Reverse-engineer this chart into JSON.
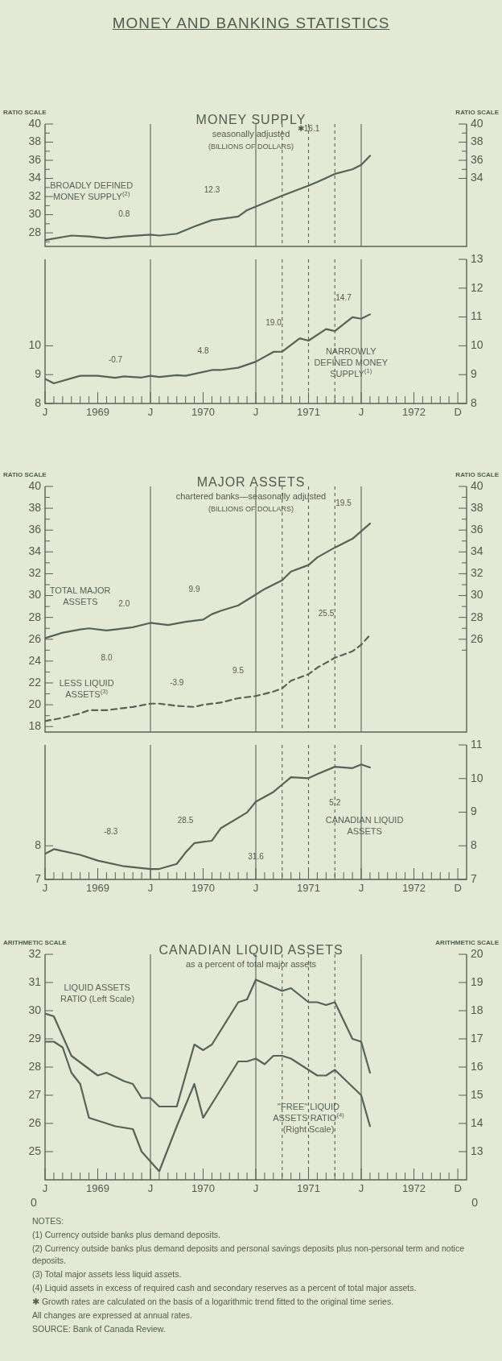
{
  "chart_data": [
    {
      "type": "other",
      "title": "MONEY AND BANKING STATISTICS"
    },
    {
      "type": "line",
      "title": "MONEY SUPPLY",
      "subtitle": "seasonally adjusted",
      "ylabel": "RATIO SCALE",
      "y2label": "RATIO SCALE",
      "legend": false,
      "marker": "none",
      "tick_labels": "y",
      "xlim": [
        "1969-01",
        "1973-01"
      ],
      "ylim": [
        26.5,
        40
      ],
      "yticks": [
        {
          "value": 27,
          "label": null
        },
        28,
        {
          "value": 29,
          "label": null
        },
        30,
        {
          "value": 31,
          "label": null
        },
        32,
        {
          "value": 33,
          "label": null
        },
        34,
        {
          "value": 35,
          "label": null
        },
        36,
        {
          "value": 37,
          "label": null
        },
        38,
        {
          "value": 39,
          "label": null
        },
        40
      ],
      "y2lim": [
        26.5,
        40
      ],
      "y2ticks": [
        34,
        {
          "value": 35,
          "label": null
        },
        36,
        {
          "value": 37,
          "label": null
        },
        38,
        {
          "value": 39,
          "label": null
        },
        40
      ],
      "series": [
        {
          "name": "BROADLY DEFINED MONEY SUPPLY$^{(2)}$",
          "color": "#55635a",
          "x": [
            "1969-01",
            "1969-04",
            "1969-06",
            "1969-08",
            "1969-10",
            "1970-01",
            "1970-02",
            "1970-04",
            "1970-06",
            "1970-08",
            "1970-11",
            "1970-12",
            "1971-01",
            "1971-04",
            "1971-07",
            "1971-08",
            "1971-10",
            "1971-12",
            "1972-01",
            "1972-02"
          ],
          "values": [
            27.2,
            27.7,
            27.6,
            27.4,
            27.6,
            27.8,
            27.7,
            27.9,
            28.7,
            29.4,
            29.8,
            30.5,
            30.9,
            32.1,
            33.2,
            33.6,
            34.5,
            35.0,
            35.5,
            36.5
          ]
        }
      ],
      "ref_lines": [
        {
          "axis": "x",
          "value": "1970-01"
        },
        {
          "axis": "x",
          "value": "1971-01"
        },
        {
          "axis": "x",
          "value": "1972-01"
        },
        {
          "axis": "x",
          "value": "1971-04",
          "line_style": "dashed"
        },
        {
          "axis": "x",
          "value": "1971-07",
          "line_style": "dashed"
        },
        {
          "axis": "x",
          "value": "1971-10",
          "line_style": "dashed"
        }
      ],
      "annotations": [
        "(BILLIONS OF DOLLARS)",
        "✱16.1",
        "12.3",
        "0.8"
      ]
    },
    {
      "type": "line",
      "legend": false,
      "marker": "none",
      "xlim": [
        "1969-01",
        "1973-01"
      ],
      "xticks": [
        {
          "value": "1969-01",
          "label": "J"
        },
        {
          "value": "1969-02",
          "label": null
        },
        {
          "value": "1969-03",
          "label": null
        },
        {
          "value": "1969-04",
          "label": null
        },
        {
          "value": "1969-05",
          "label": null
        },
        {
          "value": "1969-06",
          "label": null
        },
        {
          "value": "1969-07",
          "label": "1969"
        },
        {
          "value": "1969-08",
          "label": null
        },
        {
          "value": "1969-09",
          "label": null
        },
        {
          "value": "1969-10",
          "label": null
        },
        {
          "value": "1969-11",
          "label": null
        },
        {
          "value": "1969-12",
          "label": null
        },
        {
          "value": "1970-01",
          "label": "J"
        },
        {
          "value": "1970-02",
          "label": null
        },
        {
          "value": "1970-03",
          "label": null
        },
        {
          "value": "1970-04",
          "label": null
        },
        {
          "value": "1970-05",
          "label": null
        },
        {
          "value": "1970-06",
          "label": null
        },
        {
          "value": "1970-07",
          "label": "1970"
        },
        {
          "value": "1970-08",
          "label": null
        },
        {
          "value": "1970-09",
          "label": null
        },
        {
          "value": "1970-10",
          "label": null
        },
        {
          "value": "1970-11",
          "label": null
        },
        {
          "value": "1970-12",
          "label": null
        },
        {
          "value": "1971-01",
          "label": "J"
        },
        {
          "value": "1971-02",
          "label": null
        },
        {
          "value": "1971-03",
          "label": null
        },
        {
          "value": "1971-04",
          "label": null
        },
        {
          "value": "1971-05",
          "label": null
        },
        {
          "value": "1971-06",
          "label": null
        },
        {
          "value": "1971-07",
          "label": "1971"
        },
        {
          "value": "1971-08",
          "label": null
        },
        {
          "value": "1971-09",
          "label": null
        },
        {
          "value": "1971-10",
          "label": null
        },
        {
          "value": "1971-11",
          "label": null
        },
        {
          "value": "1971-12",
          "label": null
        },
        {
          "value": "1972-01",
          "label": "J"
        },
        {
          "value": "1972-02",
          "label": null
        },
        {
          "value": "1972-03",
          "label": null
        },
        {
          "value": "1972-04",
          "label": null
        },
        {
          "value": "1972-05",
          "label": null
        },
        {
          "value": "1972-06",
          "label": null
        },
        {
          "value": "1972-07",
          "label": "1972"
        },
        {
          "value": "1972-08",
          "label": null
        },
        {
          "value": "1972-09",
          "label": null
        },
        {
          "value": "1972-10",
          "label": null
        },
        {
          "value": "1972-11",
          "label": null
        },
        {
          "value": "1972-12",
          "label": "D"
        }
      ],
      "ylim": [
        8,
        13
      ],
      "yticks": [
        8,
        9,
        10
      ],
      "y2lim": [
        8,
        13
      ],
      "y2ticks": [
        8,
        9,
        10,
        11,
        12,
        13
      ],
      "series": [
        {
          "name": "NARROWLY DEFINED MONEY SUPPLY$^{(1)}$",
          "color": "#55635a",
          "x": [
            "1969-01",
            "1969-02",
            "1969-05",
            "1969-07",
            "1969-09",
            "1969-10",
            "1969-12",
            "1970-01",
            "1970-02",
            "1970-04",
            "1970-05",
            "1970-08",
            "1970-09",
            "1970-11",
            "1971-01",
            "1971-03",
            "1971-04",
            "1971-06",
            "1971-07",
            "1971-09",
            "1971-10",
            "1971-12",
            "1972-01",
            "1972-02"
          ],
          "values": [
            8.85,
            8.7,
            8.96,
            8.96,
            8.89,
            8.94,
            8.9,
            8.96,
            8.92,
            8.98,
            8.96,
            9.16,
            9.16,
            9.24,
            9.45,
            9.79,
            9.8,
            10.26,
            10.18,
            10.58,
            10.51,
            10.99,
            10.94,
            11.09
          ]
        }
      ],
      "ref_lines": [
        {
          "axis": "x",
          "value": "1970-01"
        },
        {
          "axis": "x",
          "value": "1971-01"
        },
        {
          "axis": "x",
          "value": "1972-01"
        },
        {
          "axis": "x",
          "value": "1971-04",
          "line_style": "dashed"
        },
        {
          "axis": "x",
          "value": "1971-07",
          "line_style": "dashed"
        },
        {
          "axis": "x",
          "value": "1971-10",
          "line_style": "dashed"
        }
      ],
      "annotations": [
        "14.7",
        "19.0",
        "4.8",
        "-0.7"
      ]
    },
    {
      "type": "line",
      "title": "MAJOR ASSETS",
      "subtitle": "chartered banks—seasonally adjusted",
      "ylabel": "RATIO SCALE",
      "y2label": "RATIO SCALE",
      "legend": false,
      "marker": "none",
      "tick_labels": "y",
      "xlim": [
        "1969-01",
        "1973-01"
      ],
      "ylim": [
        17.5,
        40
      ],
      "yticks": [
        18,
        {
          "value": 19,
          "label": null
        },
        20,
        {
          "value": 21,
          "label": null
        },
        22,
        {
          "value": 23,
          "label": null
        },
        24,
        {
          "value": 25,
          "label": null
        },
        26,
        {
          "value": 27,
          "label": null
        },
        28,
        {
          "value": 29,
          "label": null
        },
        30,
        {
          "value": 31,
          "label": null
        },
        32,
        {
          "value": 33,
          "label": null
        },
        34,
        {
          "value": 35,
          "label": null
        },
        36,
        {
          "value": 37,
          "label": null
        },
        38,
        {
          "value": 39,
          "label": null
        },
        40
      ],
      "y2lim": [
        17.5,
        40
      ],
      "y2ticks": [
        {
          "value": 25,
          "label": null
        },
        26,
        {
          "value": 27,
          "label": null
        },
        28,
        {
          "value": 29,
          "label": null
        },
        30,
        {
          "value": 31,
          "label": null
        },
        32,
        {
          "value": 33,
          "label": null
        },
        34,
        {
          "value": 35,
          "label": null
        },
        36,
        {
          "value": 37,
          "label": null
        },
        38,
        {
          "value": 39,
          "label": null
        },
        40
      ],
      "series": [
        {
          "name": "TOTAL MAJOR ASSETS",
          "color": "#55635a",
          "x": [
            "1969-01",
            "1969-03",
            "1969-05",
            "1969-06",
            "1969-08",
            "1969-09",
            "1969-11",
            "1970-01",
            "1970-03",
            "1970-05",
            "1970-07",
            "1970-08",
            "1970-09",
            "1970-11",
            "1971-01",
            "1971-02",
            "1971-04",
            "1971-05",
            "1971-07",
            "1971-08",
            "1971-10",
            "1971-12",
            "1972-01",
            "1972-02"
          ],
          "values": [
            26.1,
            26.6,
            26.9,
            27.0,
            26.8,
            26.9,
            27.1,
            27.5,
            27.3,
            27.6,
            27.8,
            28.3,
            28.6,
            29.1,
            30.1,
            30.6,
            31.4,
            32.2,
            32.8,
            33.5,
            34.4,
            35.2,
            35.9,
            36.6
          ]
        },
        {
          "name": "LESS LIQUID ASSETS$^{(3)}$",
          "color": "#55635a",
          "line_style": "dashed",
          "x": [
            "1969-01",
            "1969-03",
            "1969-05",
            "1969-06",
            "1969-08",
            "1969-09",
            "1969-11",
            "1970-01",
            "1970-02",
            "1970-04",
            "1970-06",
            "1970-07",
            "1970-09",
            "1970-11",
            "1971-01",
            "1971-03",
            "1971-04",
            "1971-05",
            "1971-07",
            "1971-08",
            "1971-10",
            "1971-12",
            "1972-01",
            "1972-02"
          ],
          "values": [
            18.5,
            18.8,
            19.2,
            19.5,
            19.5,
            19.6,
            19.8,
            20.1,
            20.1,
            19.9,
            19.8,
            20.0,
            20.2,
            20.6,
            20.8,
            21.2,
            21.5,
            22.2,
            22.8,
            23.4,
            24.3,
            24.9,
            25.5,
            26.4
          ]
        }
      ],
      "ref_lines": [
        {
          "axis": "x",
          "value": "1970-01"
        },
        {
          "axis": "x",
          "value": "1971-01"
        },
        {
          "axis": "x",
          "value": "1972-01"
        },
        {
          "axis": "x",
          "value": "1971-04",
          "line_style": "dashed"
        },
        {
          "axis": "x",
          "value": "1971-07",
          "line_style": "dashed"
        },
        {
          "axis": "x",
          "value": "1971-10",
          "line_style": "dashed"
        }
      ],
      "annotations": [
        "(BILLIONS OF DOLLARS)",
        "19.5",
        "9.9",
        "2.0",
        "25.5",
        "9.5",
        "-3.9",
        "8.0"
      ]
    },
    {
      "type": "line",
      "legend": false,
      "marker": "none",
      "xlim": [
        "1969-01",
        "1973-01"
      ],
      "xticks": [
        {
          "value": "1969-01",
          "label": "J"
        },
        {
          "value": "1969-02",
          "label": null
        },
        {
          "value": "1969-03",
          "label": null
        },
        {
          "value": "1969-04",
          "label": null
        },
        {
          "value": "1969-05",
          "label": null
        },
        {
          "value": "1969-06",
          "label": null
        },
        {
          "value": "1969-07",
          "label": "1969"
        },
        {
          "value": "1969-08",
          "label": null
        },
        {
          "value": "1969-09",
          "label": null
        },
        {
          "value": "1969-10",
          "label": null
        },
        {
          "value": "1969-11",
          "label": null
        },
        {
          "value": "1969-12",
          "label": null
        },
        {
          "value": "1970-01",
          "label": "J"
        },
        {
          "value": "1970-02",
          "label": null
        },
        {
          "value": "1970-03",
          "label": null
        },
        {
          "value": "1970-04",
          "label": null
        },
        {
          "value": "1970-05",
          "label": null
        },
        {
          "value": "1970-06",
          "label": null
        },
        {
          "value": "1970-07",
          "label": "1970"
        },
        {
          "value": "1970-08",
          "label": null
        },
        {
          "value": "1970-09",
          "label": null
        },
        {
          "value": "1970-10",
          "label": null
        },
        {
          "value": "1970-11",
          "label": null
        },
        {
          "value": "1970-12",
          "label": null
        },
        {
          "value": "1971-01",
          "label": "J"
        },
        {
          "value": "1971-02",
          "label": null
        },
        {
          "value": "1971-03",
          "label": null
        },
        {
          "value": "1971-04",
          "label": null
        },
        {
          "value": "1971-05",
          "label": null
        },
        {
          "value": "1971-06",
          "label": null
        },
        {
          "value": "1971-07",
          "label": "1971"
        },
        {
          "value": "1971-08",
          "label": null
        },
        {
          "value": "1971-09",
          "label": null
        },
        {
          "value": "1971-10",
          "label": null
        },
        {
          "value": "1971-11",
          "label": null
        },
        {
          "value": "1971-12",
          "label": null
        },
        {
          "value": "1972-01",
          "label": "J"
        },
        {
          "value": "1972-02",
          "label": null
        },
        {
          "value": "1972-03",
          "label": null
        },
        {
          "value": "1972-04",
          "label": null
        },
        {
          "value": "1972-05",
          "label": null
        },
        {
          "value": "1972-06",
          "label": null
        },
        {
          "value": "1972-07",
          "label": "1972"
        },
        {
          "value": "1972-08",
          "label": null
        },
        {
          "value": "1972-09",
          "label": null
        },
        {
          "value": "1972-10",
          "label": null
        },
        {
          "value": "1972-11",
          "label": null
        },
        {
          "value": "1972-12",
          "label": "D"
        }
      ],
      "ylim": [
        7,
        11
      ],
      "yticks": [
        7,
        8
      ],
      "y2lim": [
        7,
        11
      ],
      "y2ticks": [
        7,
        8,
        9,
        10,
        11
      ],
      "series": [
        {
          "name": "CANADIAN LIQUID ASSETS",
          "color": "#55635a",
          "x": [
            "1969-01",
            "1969-02",
            "1969-05",
            "1969-07",
            "1969-10",
            "1970-01",
            "1970-02",
            "1970-04",
            "1970-05",
            "1970-06",
            "1970-08",
            "1970-09",
            "1970-12",
            "1971-01",
            "1971-03",
            "1971-04",
            "1971-05",
            "1971-07",
            "1971-08",
            "1971-10",
            "1971-12",
            "1972-01",
            "1972-02"
          ],
          "values": [
            7.76,
            7.9,
            7.73,
            7.56,
            7.39,
            7.31,
            7.31,
            7.46,
            7.8,
            8.08,
            8.15,
            8.52,
            8.99,
            9.31,
            9.6,
            9.82,
            10.04,
            10.01,
            10.13,
            10.35,
            10.31,
            10.42,
            10.33
          ]
        }
      ],
      "ref_lines": [
        {
          "axis": "x",
          "value": "1970-01"
        },
        {
          "axis": "x",
          "value": "1971-01"
        },
        {
          "axis": "x",
          "value": "1972-01"
        },
        {
          "axis": "x",
          "value": "1971-04",
          "line_style": "dashed"
        },
        {
          "axis": "x",
          "value": "1971-07",
          "line_style": "dashed"
        },
        {
          "axis": "x",
          "value": "1971-10",
          "line_style": "dashed"
        }
      ],
      "annotations": [
        "5.2",
        "28.5",
        "-8.3",
        "31.6"
      ]
    },
    {
      "type": "line",
      "title": "CANADIAN LIQUID ASSETS",
      "subtitle": "as a percent of total major assets",
      "ylabel": "ARITHMETIC SCALE",
      "y2label": "ARITHMETIC SCALE",
      "legend": false,
      "marker": "none",
      "xlim": [
        "1969-01",
        "1973-01"
      ],
      "xticks": [
        {
          "value": "1969-01",
          "label": "J"
        },
        {
          "value": "1969-02",
          "label": null
        },
        {
          "value": "1969-03",
          "label": null
        },
        {
          "value": "1969-04",
          "label": null
        },
        {
          "value": "1969-05",
          "label": null
        },
        {
          "value": "1969-06",
          "label": null
        },
        {
          "value": "1969-07",
          "label": "1969"
        },
        {
          "value": "1969-08",
          "label": null
        },
        {
          "value": "1969-09",
          "label": null
        },
        {
          "value": "1969-10",
          "label": null
        },
        {
          "value": "1969-11",
          "label": null
        },
        {
          "value": "1969-12",
          "label": null
        },
        {
          "value": "1970-01",
          "label": "J"
        },
        {
          "value": "1970-02",
          "label": null
        },
        {
          "value": "1970-03",
          "label": null
        },
        {
          "value": "1970-04",
          "label": null
        },
        {
          "value": "1970-05",
          "label": null
        },
        {
          "value": "1970-06",
          "label": null
        },
        {
          "value": "1970-07",
          "label": "1970"
        },
        {
          "value": "1970-08",
          "label": null
        },
        {
          "value": "1970-09",
          "label": null
        },
        {
          "value": "1970-10",
          "label": null
        },
        {
          "value": "1970-11",
          "label": null
        },
        {
          "value": "1970-12",
          "label": null
        },
        {
          "value": "1971-01",
          "label": "J"
        },
        {
          "value": "1971-02",
          "label": null
        },
        {
          "value": "1971-03",
          "label": null
        },
        {
          "value": "1971-04",
          "label": null
        },
        {
          "value": "1971-05",
          "label": null
        },
        {
          "value": "1971-06",
          "label": null
        },
        {
          "value": "1971-07",
          "label": "1971"
        },
        {
          "value": "1971-08",
          "label": null
        },
        {
          "value": "1971-09",
          "label": null
        },
        {
          "value": "1971-10",
          "label": null
        },
        {
          "value": "1971-11",
          "label": null
        },
        {
          "value": "1971-12",
          "label": null
        },
        {
          "value": "1972-01",
          "label": "J"
        },
        {
          "value": "1972-02",
          "label": null
        },
        {
          "value": "1972-03",
          "label": null
        },
        {
          "value": "1972-04",
          "label": null
        },
        {
          "value": "1972-05",
          "label": null
        },
        {
          "value": "1972-06",
          "label": null
        },
        {
          "value": "1972-07",
          "label": "1972"
        },
        {
          "value": "1972-08",
          "label": null
        },
        {
          "value": "1972-09",
          "label": null
        },
        {
          "value": "1972-10",
          "label": null
        },
        {
          "value": "1972-11",
          "label": null
        },
        {
          "value": "1972-12",
          "label": "D"
        }
      ],
      "ylim": [
        24,
        32
      ],
      "yticks": [
        25,
        26,
        27,
        28,
        29,
        30,
        31,
        32
      ],
      "y2lim": [
        12,
        20
      ],
      "y2ticks": [
        13,
        14,
        15,
        16,
        17,
        18,
        19,
        20
      ],
      "series": [
        {
          "name": "LIQUID ASSETS RATIO (Left Scale)",
          "color": "#55635a",
          "x": [
            "1969-01",
            "1969-02",
            "1969-04",
            "1969-07",
            "1969-08",
            "1969-10",
            "1969-11",
            "1969-12",
            "1970-01",
            "1970-02",
            "1970-04",
            "1970-06",
            "1970-07",
            "1970-08",
            "1970-11",
            "1970-12",
            "1971-01",
            "1971-04",
            "1971-05",
            "1971-07",
            "1971-08",
            "1971-09",
            "1971-10",
            "1971-12",
            "1972-01",
            "1972-02"
          ],
          "values": [
            29.9,
            29.8,
            28.4,
            27.7,
            27.8,
            27.5,
            27.4,
            26.9,
            26.9,
            26.6,
            26.6,
            28.8,
            28.6,
            28.8,
            30.3,
            30.4,
            31.1,
            30.7,
            30.8,
            30.3,
            30.3,
            30.2,
            30.3,
            29.0,
            28.9,
            27.8
          ]
        },
        {
          "name": "\"FREE\" LIQUID ASSETS RATIO$^{(4)}$ (Right Scale)",
          "color": "#55635a",
          "axis": "y2",
          "x": [
            "1969-01",
            "1969-02",
            "1969-03",
            "1969-04",
            "1969-05",
            "1969-06",
            "1969-09",
            "1969-11",
            "1969-12",
            "1970-02",
            "1970-04",
            "1970-06",
            "1970-07",
            "1970-08",
            "1970-11",
            "1970-12",
            "1971-01",
            "1971-02",
            "1971-03",
            "1971-04",
            "1971-05",
            "1971-07",
            "1971-08",
            "1971-09",
            "1971-10",
            "1971-12",
            "1972-01",
            "1972-02"
          ],
          "values": [
            16.9,
            16.9,
            16.7,
            15.8,
            15.4,
            14.2,
            13.9,
            13.8,
            13.0,
            12.3,
            13.9,
            15.4,
            14.2,
            14.7,
            16.2,
            16.2,
            16.3,
            16.1,
            16.4,
            16.4,
            16.3,
            15.9,
            15.7,
            15.7,
            15.9,
            15.3,
            15.0,
            13.9
          ]
        }
      ],
      "ref_lines": [
        {
          "axis": "x",
          "value": "1970-01"
        },
        {
          "axis": "x",
          "value": "1971-01"
        },
        {
          "axis": "x",
          "value": "1972-01"
        },
        {
          "axis": "x",
          "value": "1971-04",
          "line_style": "dashed"
        },
        {
          "axis": "x",
          "value": "1971-07",
          "line_style": "dashed"
        },
        {
          "axis": "x",
          "value": "1971-10",
          "line_style": "dashed"
        }
      ]
    },
    {
      "type": "other",
      "annotations": [
        "0",
        "0"
      ]
    },
    {
      "type": "other",
      "annotations": [
        "NOTES:",
        "(1) Currency outside banks plus demand deposits.",
        "(2) Currency outside banks plus demand deposits and personal savings deposits plus non-personal term and notice deposits.",
        "(3) Total major assets less liquid assets.",
        "(4) Liquid assets in excess of required cash and secondary reserves as a percent of total major assets.",
        "✱ Growth rates are calculated on the basis of a logarithmic trend fitted to the original time series.",
        "All changes are expressed at annual rates.",
        "SOURCE: Bank of Canada Review."
      ]
    }
  ]
}
